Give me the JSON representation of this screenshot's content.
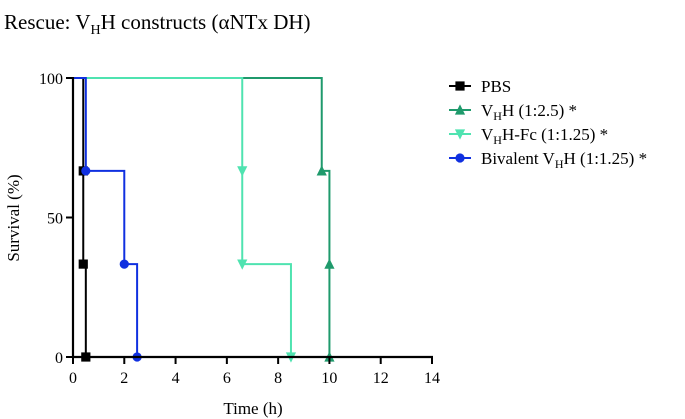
{
  "chart_data": {
    "type": "line",
    "step": true,
    "title_main": "Rescue: V",
    "title_sub": "H",
    "title_rest": "H constructs (αNTx DH)",
    "xlabel": "Time (h)",
    "ylabel": "Survival (%)",
    "xlim": [
      0,
      14
    ],
    "ylim": [
      0,
      100
    ],
    "x_ticks": [
      0,
      2,
      4,
      6,
      8,
      10,
      12,
      14
    ],
    "x_tick_labels": [
      "0",
      "2",
      "4",
      "6",
      "8",
      "10",
      "12",
      "14"
    ],
    "y_ticks": [
      0,
      50,
      100
    ],
    "y_tick_labels": [
      "0",
      "50",
      "100"
    ],
    "grid": false,
    "legend_position": "right",
    "series": [
      {
        "key": "pbs",
        "legend_main": "PBS",
        "legend_sub": "",
        "legend_rest": "",
        "color": "#000000",
        "marker": "square",
        "x": [
          0,
          0.4,
          0.4,
          0.5
        ],
        "y": [
          100,
          66.7,
          33.3,
          0
        ]
      },
      {
        "key": "vhh",
        "legend_main": "V",
        "legend_sub": "H",
        "legend_rest": "H (1:2.5) *",
        "color": "#1f9a6c",
        "marker": "triangle-up",
        "x": [
          0,
          9.7,
          10.0,
          10.0
        ],
        "y": [
          100,
          66.7,
          33.3,
          0
        ]
      },
      {
        "key": "vhh-fc",
        "legend_main": "V",
        "legend_sub": "H",
        "legend_rest": "H-Fc (1:1.25) *",
        "color": "#4fe3b0",
        "marker": "triangle-down",
        "x": [
          0,
          6.6,
          6.6,
          8.5
        ],
        "y": [
          100,
          66.7,
          33.3,
          0
        ]
      },
      {
        "key": "bivalent-vhh",
        "legend_main": "Bivalent V",
        "legend_sub": "H",
        "legend_rest": "H (1:1.25) *",
        "color": "#1030e0",
        "marker": "circle",
        "x": [
          0,
          0.5,
          2.0,
          2.5
        ],
        "y": [
          100,
          66.7,
          33.3,
          0
        ]
      }
    ]
  }
}
